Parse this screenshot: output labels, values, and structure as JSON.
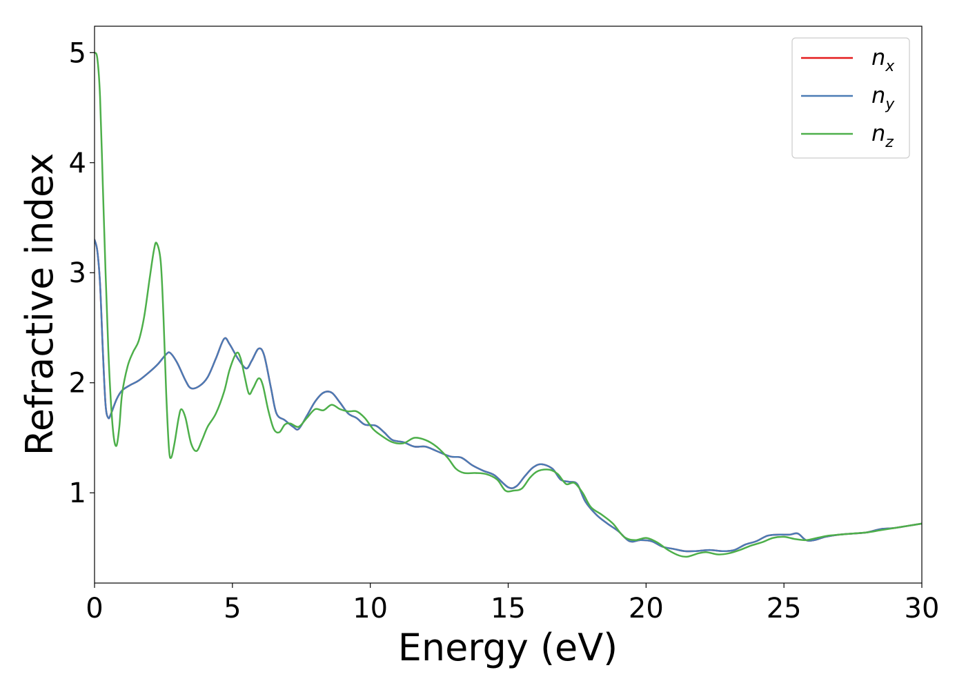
{
  "chart_data": {
    "type": "line",
    "xlabel": "Energy (eV)",
    "ylabel": "Refractive index",
    "xlim": [
      0,
      30
    ],
    "ylim": [
      0.18,
      5.24
    ],
    "xticks": [
      "0",
      "5",
      "10",
      "15",
      "20",
      "25",
      "30"
    ],
    "yticks": [
      "1",
      "2",
      "3",
      "4",
      "5"
    ],
    "grid": false,
    "legend_position": "top-right",
    "series": [
      {
        "name": "n_x",
        "label_base": "n",
        "label_sub": "x",
        "color": "#e41a1c",
        "points": [
          [
            0,
            3.3
          ],
          [
            0.1,
            3.2
          ],
          [
            0.2,
            2.9
          ],
          [
            0.3,
            2.3
          ],
          [
            0.4,
            1.8
          ],
          [
            0.5,
            1.68
          ],
          [
            0.6,
            1.72
          ],
          [
            0.8,
            1.85
          ],
          [
            1.0,
            1.93
          ],
          [
            1.3,
            1.98
          ],
          [
            1.6,
            2.02
          ],
          [
            2.0,
            2.1
          ],
          [
            2.3,
            2.17
          ],
          [
            2.6,
            2.26
          ],
          [
            2.75,
            2.27
          ],
          [
            3.0,
            2.18
          ],
          [
            3.3,
            2.02
          ],
          [
            3.5,
            1.95
          ],
          [
            3.8,
            1.97
          ],
          [
            4.1,
            2.05
          ],
          [
            4.4,
            2.22
          ],
          [
            4.7,
            2.4
          ],
          [
            4.9,
            2.35
          ],
          [
            5.2,
            2.22
          ],
          [
            5.5,
            2.13
          ],
          [
            5.7,
            2.2
          ],
          [
            5.95,
            2.31
          ],
          [
            6.15,
            2.25
          ],
          [
            6.4,
            1.95
          ],
          [
            6.6,
            1.72
          ],
          [
            6.9,
            1.66
          ],
          [
            7.2,
            1.6
          ],
          [
            7.4,
            1.58
          ],
          [
            7.7,
            1.7
          ],
          [
            8.0,
            1.83
          ],
          [
            8.3,
            1.91
          ],
          [
            8.6,
            1.91
          ],
          [
            8.9,
            1.82
          ],
          [
            9.2,
            1.72
          ],
          [
            9.5,
            1.68
          ],
          [
            9.8,
            1.62
          ],
          [
            10.2,
            1.61
          ],
          [
            10.5,
            1.55
          ],
          [
            10.8,
            1.48
          ],
          [
            11.2,
            1.46
          ],
          [
            11.6,
            1.42
          ],
          [
            12.0,
            1.42
          ],
          [
            12.4,
            1.38
          ],
          [
            12.9,
            1.33
          ],
          [
            13.3,
            1.32
          ],
          [
            13.7,
            1.25
          ],
          [
            14.1,
            1.2
          ],
          [
            14.5,
            1.16
          ],
          [
            15.0,
            1.05
          ],
          [
            15.3,
            1.06
          ],
          [
            15.6,
            1.15
          ],
          [
            15.9,
            1.23
          ],
          [
            16.2,
            1.26
          ],
          [
            16.6,
            1.22
          ],
          [
            16.9,
            1.12
          ],
          [
            17.2,
            1.1
          ],
          [
            17.5,
            1.08
          ],
          [
            17.8,
            0.92
          ],
          [
            18.2,
            0.8
          ],
          [
            18.6,
            0.72
          ],
          [
            19.0,
            0.65
          ],
          [
            19.4,
            0.56
          ],
          [
            19.8,
            0.57
          ],
          [
            20.2,
            0.56
          ],
          [
            20.6,
            0.51
          ],
          [
            21.0,
            0.49
          ],
          [
            21.4,
            0.47
          ],
          [
            21.8,
            0.47
          ],
          [
            22.3,
            0.48
          ],
          [
            22.8,
            0.47
          ],
          [
            23.2,
            0.48
          ],
          [
            23.6,
            0.53
          ],
          [
            24.0,
            0.56
          ],
          [
            24.4,
            0.61
          ],
          [
            24.8,
            0.62
          ],
          [
            25.2,
            0.62
          ],
          [
            25.5,
            0.63
          ],
          [
            25.8,
            0.57
          ],
          [
            26.1,
            0.57
          ],
          [
            26.5,
            0.6
          ],
          [
            27.0,
            0.62
          ],
          [
            27.5,
            0.63
          ],
          [
            28.0,
            0.64
          ],
          [
            28.5,
            0.67
          ],
          [
            29.0,
            0.68
          ],
          [
            29.5,
            0.7
          ],
          [
            30.0,
            0.72
          ]
        ]
      },
      {
        "name": "n_y",
        "label_base": "n",
        "label_sub": "y",
        "color": "#4a7bb5",
        "points": [
          [
            0,
            3.3
          ],
          [
            0.1,
            3.2
          ],
          [
            0.2,
            2.9
          ],
          [
            0.3,
            2.3
          ],
          [
            0.4,
            1.8
          ],
          [
            0.5,
            1.68
          ],
          [
            0.6,
            1.72
          ],
          [
            0.8,
            1.85
          ],
          [
            1.0,
            1.93
          ],
          [
            1.3,
            1.98
          ],
          [
            1.6,
            2.02
          ],
          [
            2.0,
            2.1
          ],
          [
            2.3,
            2.17
          ],
          [
            2.6,
            2.26
          ],
          [
            2.75,
            2.27
          ],
          [
            3.0,
            2.18
          ],
          [
            3.3,
            2.02
          ],
          [
            3.5,
            1.95
          ],
          [
            3.8,
            1.97
          ],
          [
            4.1,
            2.05
          ],
          [
            4.4,
            2.22
          ],
          [
            4.7,
            2.4
          ],
          [
            4.9,
            2.35
          ],
          [
            5.2,
            2.22
          ],
          [
            5.5,
            2.13
          ],
          [
            5.7,
            2.2
          ],
          [
            5.95,
            2.31
          ],
          [
            6.15,
            2.25
          ],
          [
            6.4,
            1.95
          ],
          [
            6.6,
            1.72
          ],
          [
            6.9,
            1.66
          ],
          [
            7.2,
            1.6
          ],
          [
            7.4,
            1.58
          ],
          [
            7.7,
            1.7
          ],
          [
            8.0,
            1.83
          ],
          [
            8.3,
            1.91
          ],
          [
            8.6,
            1.91
          ],
          [
            8.9,
            1.82
          ],
          [
            9.2,
            1.72
          ],
          [
            9.5,
            1.68
          ],
          [
            9.8,
            1.62
          ],
          [
            10.2,
            1.61
          ],
          [
            10.5,
            1.55
          ],
          [
            10.8,
            1.48
          ],
          [
            11.2,
            1.46
          ],
          [
            11.6,
            1.42
          ],
          [
            12.0,
            1.42
          ],
          [
            12.4,
            1.38
          ],
          [
            12.9,
            1.33
          ],
          [
            13.3,
            1.32
          ],
          [
            13.7,
            1.25
          ],
          [
            14.1,
            1.2
          ],
          [
            14.5,
            1.16
          ],
          [
            15.0,
            1.05
          ],
          [
            15.3,
            1.06
          ],
          [
            15.6,
            1.15
          ],
          [
            15.9,
            1.23
          ],
          [
            16.2,
            1.26
          ],
          [
            16.6,
            1.22
          ],
          [
            16.9,
            1.12
          ],
          [
            17.2,
            1.1
          ],
          [
            17.5,
            1.08
          ],
          [
            17.8,
            0.92
          ],
          [
            18.2,
            0.8
          ],
          [
            18.6,
            0.72
          ],
          [
            19.0,
            0.65
          ],
          [
            19.4,
            0.56
          ],
          [
            19.8,
            0.57
          ],
          [
            20.2,
            0.56
          ],
          [
            20.6,
            0.51
          ],
          [
            21.0,
            0.49
          ],
          [
            21.4,
            0.47
          ],
          [
            21.8,
            0.47
          ],
          [
            22.3,
            0.48
          ],
          [
            22.8,
            0.47
          ],
          [
            23.2,
            0.48
          ],
          [
            23.6,
            0.53
          ],
          [
            24.0,
            0.56
          ],
          [
            24.4,
            0.61
          ],
          [
            24.8,
            0.62
          ],
          [
            25.2,
            0.62
          ],
          [
            25.5,
            0.63
          ],
          [
            25.8,
            0.57
          ],
          [
            26.1,
            0.57
          ],
          [
            26.5,
            0.6
          ],
          [
            27.0,
            0.62
          ],
          [
            27.5,
            0.63
          ],
          [
            28.0,
            0.64
          ],
          [
            28.5,
            0.67
          ],
          [
            29.0,
            0.68
          ],
          [
            29.5,
            0.7
          ],
          [
            30.0,
            0.72
          ]
        ]
      },
      {
        "name": "n_z",
        "label_base": "n",
        "label_sub": "z",
        "color": "#4daf4a",
        "points": [
          [
            0,
            5.0
          ],
          [
            0.1,
            4.95
          ],
          [
            0.2,
            4.6
          ],
          [
            0.3,
            3.8
          ],
          [
            0.4,
            3.0
          ],
          [
            0.5,
            2.3
          ],
          [
            0.6,
            1.8
          ],
          [
            0.7,
            1.5
          ],
          [
            0.8,
            1.43
          ],
          [
            0.9,
            1.6
          ],
          [
            1.0,
            1.9
          ],
          [
            1.2,
            2.15
          ],
          [
            1.4,
            2.28
          ],
          [
            1.6,
            2.38
          ],
          [
            1.8,
            2.6
          ],
          [
            2.0,
            2.95
          ],
          [
            2.15,
            3.2
          ],
          [
            2.25,
            3.27
          ],
          [
            2.4,
            3.1
          ],
          [
            2.5,
            2.6
          ],
          [
            2.6,
            1.9
          ],
          [
            2.7,
            1.4
          ],
          [
            2.78,
            1.32
          ],
          [
            2.9,
            1.45
          ],
          [
            3.05,
            1.68
          ],
          [
            3.15,
            1.76
          ],
          [
            3.3,
            1.68
          ],
          [
            3.5,
            1.45
          ],
          [
            3.7,
            1.38
          ],
          [
            3.9,
            1.48
          ],
          [
            4.1,
            1.6
          ],
          [
            4.4,
            1.72
          ],
          [
            4.7,
            1.92
          ],
          [
            4.9,
            2.12
          ],
          [
            5.15,
            2.27
          ],
          [
            5.3,
            2.22
          ],
          [
            5.45,
            2.05
          ],
          [
            5.6,
            1.9
          ],
          [
            5.75,
            1.95
          ],
          [
            5.95,
            2.04
          ],
          [
            6.1,
            1.98
          ],
          [
            6.3,
            1.75
          ],
          [
            6.5,
            1.58
          ],
          [
            6.7,
            1.55
          ],
          [
            6.9,
            1.62
          ],
          [
            7.1,
            1.63
          ],
          [
            7.4,
            1.6
          ],
          [
            7.7,
            1.68
          ],
          [
            8.0,
            1.76
          ],
          [
            8.3,
            1.75
          ],
          [
            8.6,
            1.8
          ],
          [
            8.9,
            1.76
          ],
          [
            9.2,
            1.74
          ],
          [
            9.5,
            1.74
          ],
          [
            9.8,
            1.68
          ],
          [
            10.1,
            1.58
          ],
          [
            10.4,
            1.52
          ],
          [
            10.8,
            1.46
          ],
          [
            11.2,
            1.45
          ],
          [
            11.6,
            1.5
          ],
          [
            12.0,
            1.48
          ],
          [
            12.4,
            1.42
          ],
          [
            12.8,
            1.32
          ],
          [
            13.1,
            1.22
          ],
          [
            13.4,
            1.18
          ],
          [
            13.8,
            1.18
          ],
          [
            14.2,
            1.17
          ],
          [
            14.6,
            1.12
          ],
          [
            14.9,
            1.02
          ],
          [
            15.2,
            1.02
          ],
          [
            15.5,
            1.04
          ],
          [
            15.8,
            1.14
          ],
          [
            16.1,
            1.2
          ],
          [
            16.5,
            1.21
          ],
          [
            16.8,
            1.17
          ],
          [
            17.1,
            1.08
          ],
          [
            17.4,
            1.09
          ],
          [
            17.7,
            1.0
          ],
          [
            18.0,
            0.87
          ],
          [
            18.4,
            0.8
          ],
          [
            18.8,
            0.72
          ],
          [
            19.2,
            0.6
          ],
          [
            19.6,
            0.57
          ],
          [
            20.0,
            0.59
          ],
          [
            20.4,
            0.55
          ],
          [
            20.8,
            0.48
          ],
          [
            21.2,
            0.43
          ],
          [
            21.5,
            0.42
          ],
          [
            21.9,
            0.45
          ],
          [
            22.2,
            0.46
          ],
          [
            22.6,
            0.44
          ],
          [
            23.0,
            0.45
          ],
          [
            23.4,
            0.48
          ],
          [
            23.8,
            0.52
          ],
          [
            24.2,
            0.55
          ],
          [
            24.6,
            0.59
          ],
          [
            25.0,
            0.6
          ],
          [
            25.4,
            0.58
          ],
          [
            25.8,
            0.57
          ],
          [
            26.2,
            0.59
          ],
          [
            26.6,
            0.61
          ],
          [
            27.0,
            0.62
          ],
          [
            27.5,
            0.63
          ],
          [
            28.0,
            0.64
          ],
          [
            28.5,
            0.66
          ],
          [
            29.0,
            0.68
          ],
          [
            29.5,
            0.7
          ],
          [
            30.0,
            0.72
          ]
        ]
      }
    ]
  }
}
